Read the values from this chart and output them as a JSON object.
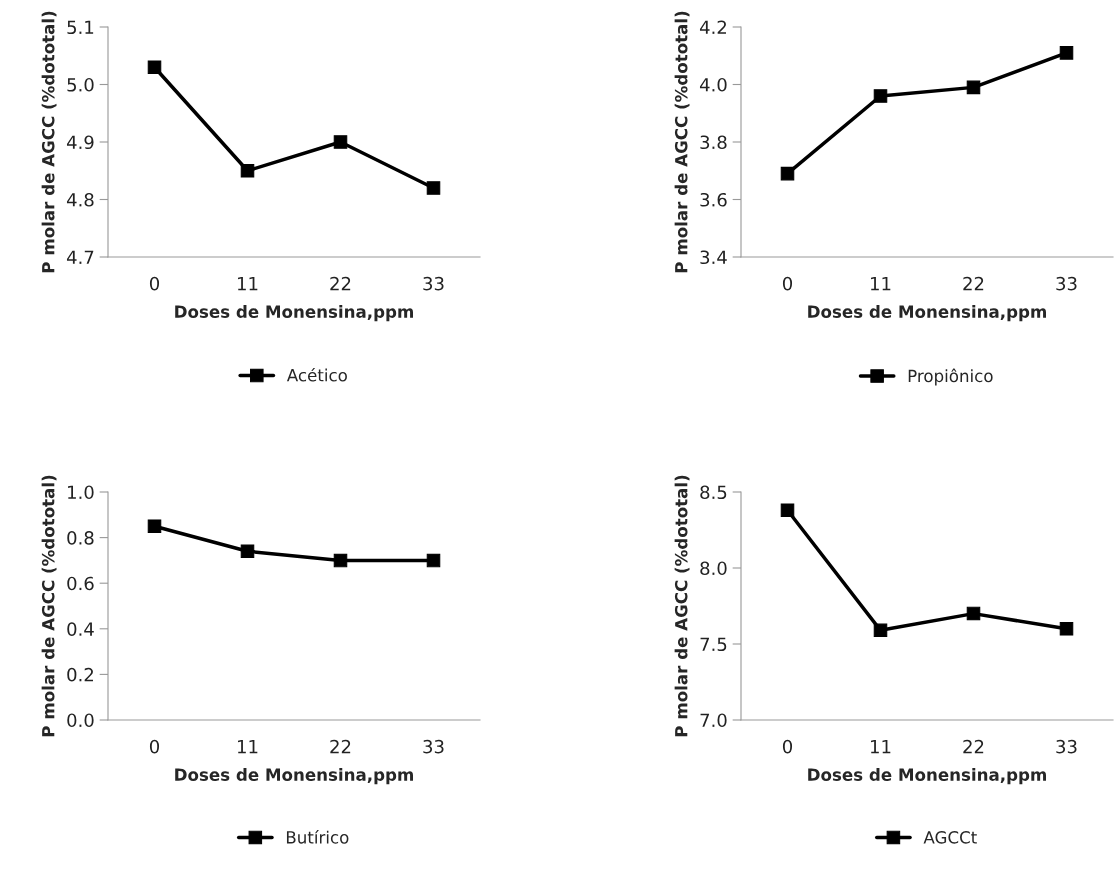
{
  "chart_data": [
    {
      "type": "line",
      "xlabel": "Doses de Monensina,ppm",
      "ylabel": "P molar de AGCC (%dototal)",
      "categories": [
        "0",
        "11",
        "22",
        "33"
      ],
      "series": [
        {
          "name": "Acético",
          "color": "#000000",
          "values": [
            5.03,
            4.85,
            4.9,
            4.82
          ]
        }
      ],
      "ylim": [
        4.7,
        5.1
      ],
      "yticks": [
        {
          "value": 4.7,
          "label": "4.7"
        },
        {
          "value": 4.8,
          "label": "4.8"
        },
        {
          "value": 4.9,
          "label": "4.9"
        },
        {
          "value": 5.0,
          "label": "5.0"
        },
        {
          "value": 5.1,
          "label": "5.1"
        }
      ],
      "marker": "square",
      "grid": false,
      "legend": "bottom"
    },
    {
      "type": "line",
      "xlabel": "Doses de Monensina,ppm",
      "ylabel": "P molar de AGCC (%dototal)",
      "categories": [
        "0",
        "11",
        "22",
        "33"
      ],
      "series": [
        {
          "name": "Propiônico",
          "color": "#000000",
          "values": [
            3.69,
            3.96,
            3.99,
            4.11
          ]
        }
      ],
      "ylim": [
        3.4,
        4.2
      ],
      "yticks": [
        {
          "value": 3.4,
          "label": "3.4"
        },
        {
          "value": 3.6,
          "label": "3.6"
        },
        {
          "value": 3.8,
          "label": "3.8"
        },
        {
          "value": 4.0,
          "label": "4.0"
        },
        {
          "value": 4.2,
          "label": "4.2"
        }
      ],
      "marker": "square",
      "grid": false,
      "legend": "bottom"
    },
    {
      "type": "line",
      "xlabel": "Doses de Monensina,ppm",
      "ylabel": "P molar de AGCC (%dototal)",
      "categories": [
        "0",
        "11",
        "22",
        "33"
      ],
      "series": [
        {
          "name": "Butírico",
          "color": "#000000",
          "values": [
            0.85,
            0.74,
            0.7,
            0.7
          ]
        }
      ],
      "ylim": [
        0.0,
        1.0
      ],
      "yticks": [
        {
          "value": 0.0,
          "label": "0.0"
        },
        {
          "value": 0.2,
          "label": "0.2"
        },
        {
          "value": 0.4,
          "label": "0.4"
        },
        {
          "value": 0.6,
          "label": "0.6"
        },
        {
          "value": 0.8,
          "label": "0.8"
        },
        {
          "value": 1.0,
          "label": "1.0"
        }
      ],
      "marker": "square",
      "grid": false,
      "legend": "bottom"
    },
    {
      "type": "line",
      "xlabel": "Doses de Monensina,ppm",
      "ylabel": "P molar de AGCC (%dototal)",
      "categories": [
        "0",
        "11",
        "22",
        "33"
      ],
      "series": [
        {
          "name": "AGCCt",
          "color": "#000000",
          "values": [
            8.38,
            7.59,
            7.7,
            7.6
          ]
        }
      ],
      "ylim": [
        7.0,
        8.5
      ],
      "yticks": [
        {
          "value": 7.0,
          "label": "7.0"
        },
        {
          "value": 7.5,
          "label": "7.5"
        },
        {
          "value": 8.0,
          "label": "8.0"
        },
        {
          "value": 8.5,
          "label": "8.5"
        }
      ],
      "marker": "square",
      "grid": false,
      "legend": "bottom"
    }
  ]
}
